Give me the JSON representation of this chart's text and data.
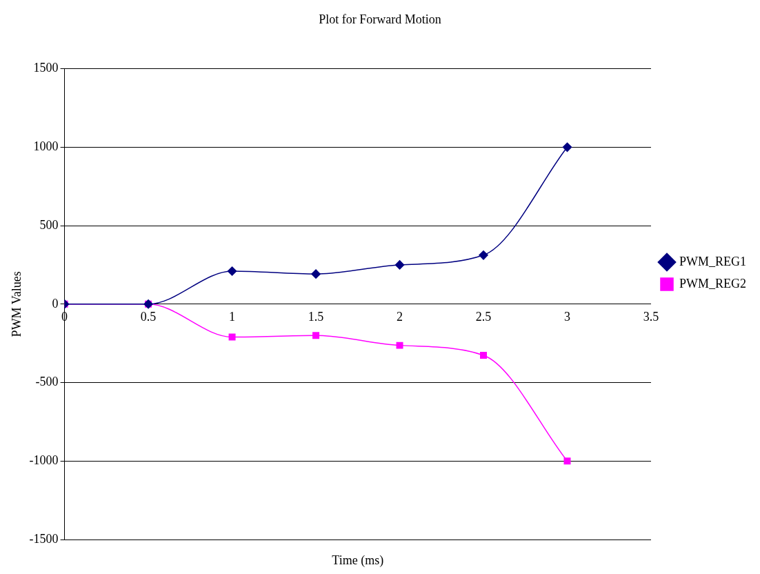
{
  "chart_data": {
    "type": "line",
    "title": "Plot for Forward Motion",
    "xlabel": "Time (ms)",
    "ylabel": "PWM Values",
    "x": [
      0,
      0.5,
      1,
      1.5,
      2,
      2.5,
      3
    ],
    "series": [
      {
        "name": "PWM_REG1",
        "color": "#000080",
        "marker": "diamond",
        "values": [
          0,
          0,
          210,
          192,
          250,
          312,
          1000
        ]
      },
      {
        "name": "PWM_REG2",
        "color": "#ff00ff",
        "marker": "square",
        "values": [
          0,
          0,
          -210,
          -200,
          -263,
          -326,
          -1000
        ]
      }
    ],
    "xlim": [
      0,
      3.5
    ],
    "xticks": [
      0,
      0.5,
      1,
      1.5,
      2,
      2.5,
      3,
      3.5
    ],
    "ylim": [
      -1500,
      1500
    ],
    "yticks": [
      -1500,
      -1000,
      -500,
      0,
      500,
      1000,
      1500
    ],
    "grid": "y",
    "legend": "right",
    "line_style": "solid"
  }
}
